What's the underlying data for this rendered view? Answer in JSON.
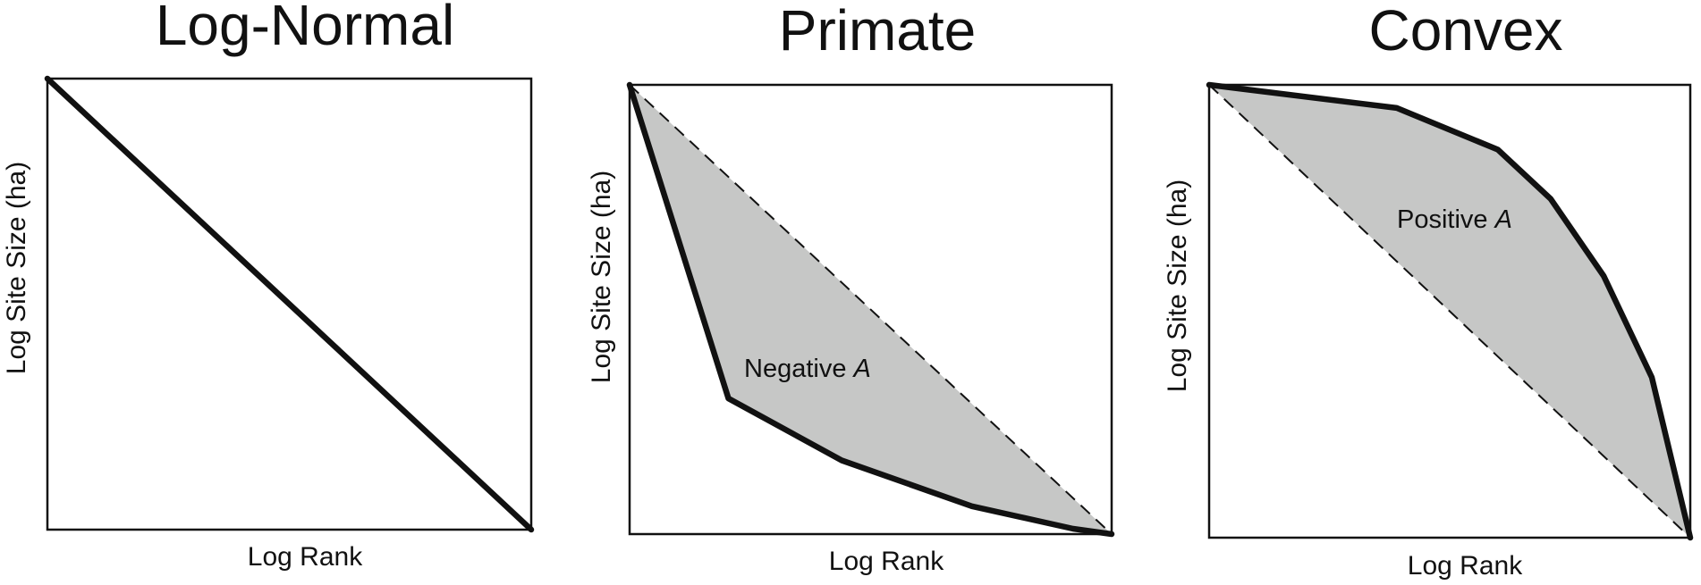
{
  "colors": {
    "shade": "#c6c7c6",
    "line": "#111111",
    "background": "#ffffff"
  },
  "panels": [
    {
      "title": "Log-Normal",
      "xlabel": "Log Rank",
      "ylabel": "Log Site Size (ha)",
      "annotation": null,
      "curve": [
        [
          0,
          1
        ],
        [
          1,
          0
        ]
      ],
      "reference": null
    },
    {
      "title": "Primate",
      "xlabel": "Log Rank",
      "ylabel": "Log Site Size (ha)",
      "annotation": {
        "prefix": "Negative ",
        "symbol": "A"
      },
      "curve": [
        [
          0,
          1
        ],
        [
          0.205,
          0.302
        ],
        [
          0.44,
          0.164
        ],
        [
          0.71,
          0.062
        ],
        [
          0.92,
          0.012
        ],
        [
          1,
          0
        ]
      ],
      "reference": [
        [
          0,
          1
        ],
        [
          1,
          0
        ]
      ]
    },
    {
      "title": "Convex",
      "xlabel": "Log Rank",
      "ylabel": "Log Site Size (ha)",
      "annotation": {
        "prefix": "Positive ",
        "symbol": "A"
      },
      "curve": [
        [
          0,
          1
        ],
        [
          0.39,
          0.949
        ],
        [
          0.6,
          0.857
        ],
        [
          0.71,
          0.748
        ],
        [
          0.82,
          0.578
        ],
        [
          0.92,
          0.354
        ],
        [
          1,
          0
        ]
      ],
      "reference": [
        [
          0,
          1
        ],
        [
          1,
          0
        ]
      ]
    }
  ]
}
